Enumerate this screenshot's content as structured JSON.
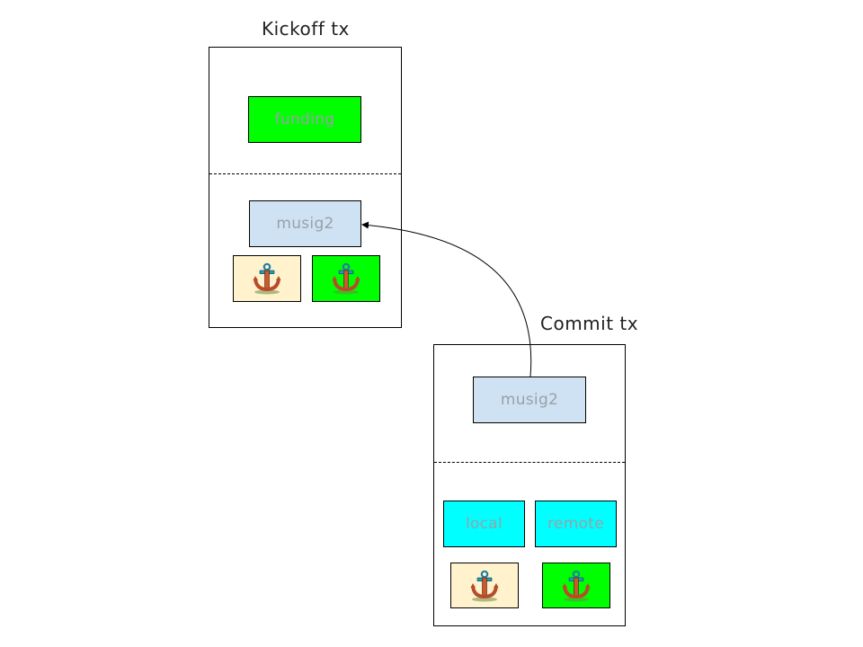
{
  "colors": {
    "funding": "#00ff00",
    "musig2": "#cfe2f3",
    "local": "#00ffff",
    "remote": "#00ffff",
    "anchor_cream": "#fff2cc",
    "anchor_green": "#00ff00"
  },
  "kickoff": {
    "title": "Kickoff tx",
    "funding_label": "funding",
    "musig2_label": "musig2",
    "anchors": [
      {
        "icon": "anchor-icon",
        "background": "#fff2cc"
      },
      {
        "icon": "anchor-icon",
        "background": "#00ff00"
      }
    ]
  },
  "commit": {
    "title": "Commit tx",
    "musig2_label": "musig2",
    "local_label": "local",
    "remote_label": "remote",
    "anchors": [
      {
        "icon": "anchor-icon",
        "background": "#fff2cc"
      },
      {
        "icon": "anchor-icon",
        "background": "#00ff00"
      }
    ]
  },
  "edges": [
    {
      "from": "commit-musig2",
      "to": "kickoff-musig2",
      "style": "arrow"
    }
  ]
}
